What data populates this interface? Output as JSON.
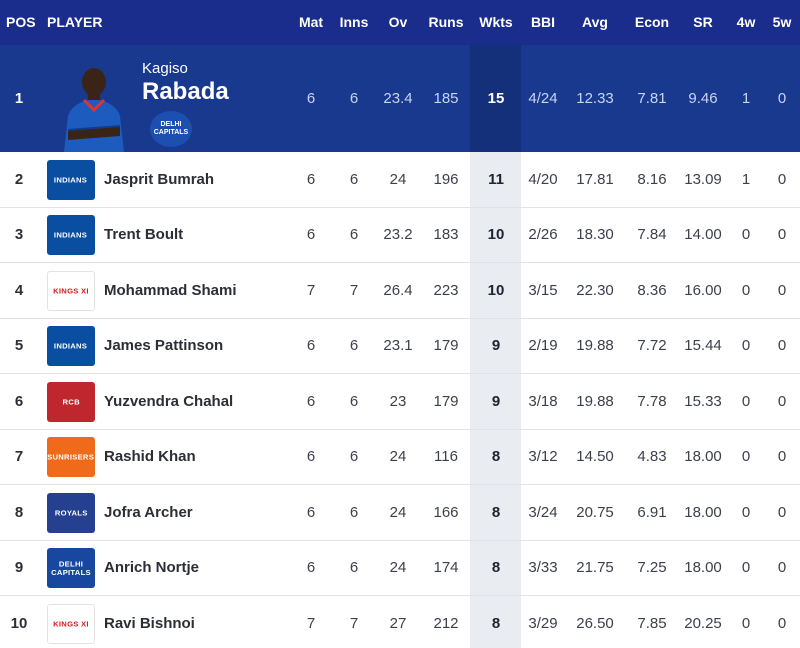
{
  "columns": {
    "pos": "POS",
    "player": "PLAYER",
    "mat": "Mat",
    "inns": "Inns",
    "ov": "Ov",
    "runs": "Runs",
    "wkts": "Wkts",
    "bbi": "BBI",
    "avg": "Avg",
    "econ": "Econ",
    "sr": "SR",
    "w4": "4w",
    "w5": "5w"
  },
  "featured": {
    "pos": "1",
    "first_name": "Kagiso",
    "last_name": "Rabada",
    "team_logo_text": "DELHI CAPITALS",
    "mat": "6",
    "inns": "6",
    "ov": "23.4",
    "runs": "185",
    "wkts": "15",
    "bbi": "4/24",
    "avg": "12.33",
    "econ": "7.81",
    "sr": "9.46",
    "w4": "1",
    "w5": "0"
  },
  "rows": [
    {
      "pos": "2",
      "name": "Jasprit Bumrah",
      "team": "mi",
      "team_logo_text": "INDIANS",
      "mat": "6",
      "inns": "6",
      "ov": "24",
      "runs": "196",
      "wkts": "11",
      "bbi": "4/20",
      "avg": "17.81",
      "econ": "8.16",
      "sr": "13.09",
      "w4": "1",
      "w5": "0"
    },
    {
      "pos": "3",
      "name": "Trent Boult",
      "team": "mi",
      "team_logo_text": "INDIANS",
      "mat": "6",
      "inns": "6",
      "ov": "23.2",
      "runs": "183",
      "wkts": "10",
      "bbi": "2/26",
      "avg": "18.30",
      "econ": "7.84",
      "sr": "14.00",
      "w4": "0",
      "w5": "0"
    },
    {
      "pos": "4",
      "name": "Mohammad Shami",
      "team": "kxip",
      "team_logo_text": "KINGS XI",
      "mat": "7",
      "inns": "7",
      "ov": "26.4",
      "runs": "223",
      "wkts": "10",
      "bbi": "3/15",
      "avg": "22.30",
      "econ": "8.36",
      "sr": "16.00",
      "w4": "0",
      "w5": "0"
    },
    {
      "pos": "5",
      "name": "James Pattinson",
      "team": "mi",
      "team_logo_text": "INDIANS",
      "mat": "6",
      "inns": "6",
      "ov": "23.1",
      "runs": "179",
      "wkts": "9",
      "bbi": "2/19",
      "avg": "19.88",
      "econ": "7.72",
      "sr": "15.44",
      "w4": "0",
      "w5": "0"
    },
    {
      "pos": "6",
      "name": "Yuzvendra Chahal",
      "team": "rcb",
      "team_logo_text": "RCB",
      "mat": "6",
      "inns": "6",
      "ov": "23",
      "runs": "179",
      "wkts": "9",
      "bbi": "3/18",
      "avg": "19.88",
      "econ": "7.78",
      "sr": "15.33",
      "w4": "0",
      "w5": "0"
    },
    {
      "pos": "7",
      "name": "Rashid Khan",
      "team": "srh",
      "team_logo_text": "SUNRISERS",
      "mat": "6",
      "inns": "6",
      "ov": "24",
      "runs": "116",
      "wkts": "8",
      "bbi": "3/12",
      "avg": "14.50",
      "econ": "4.83",
      "sr": "18.00",
      "w4": "0",
      "w5": "0"
    },
    {
      "pos": "8",
      "name": "Jofra Archer",
      "team": "rr",
      "team_logo_text": "ROYALS",
      "mat": "6",
      "inns": "6",
      "ov": "24",
      "runs": "166",
      "wkts": "8",
      "bbi": "3/24",
      "avg": "20.75",
      "econ": "6.91",
      "sr": "18.00",
      "w4": "0",
      "w5": "0"
    },
    {
      "pos": "9",
      "name": "Anrich Nortje",
      "team": "dc",
      "team_logo_text": "DELHI CAPITALS",
      "mat": "6",
      "inns": "6",
      "ov": "24",
      "runs": "174",
      "wkts": "8",
      "bbi": "3/33",
      "avg": "21.75",
      "econ": "7.25",
      "sr": "18.00",
      "w4": "0",
      "w5": "0"
    },
    {
      "pos": "10",
      "name": "Ravi Bishnoi",
      "team": "kxip",
      "team_logo_text": "KINGS XI",
      "mat": "7",
      "inns": "7",
      "ov": "27",
      "runs": "212",
      "wkts": "8",
      "bbi": "3/29",
      "avg": "26.50",
      "econ": "7.85",
      "sr": "20.25",
      "w4": "0",
      "w5": "0"
    }
  ],
  "colors": {
    "header_bg": "#1a2d8d",
    "featured_bg": "#19398f",
    "wkts_highlight": "#e9ecf1",
    "row_divider": "#dfe3ea"
  }
}
